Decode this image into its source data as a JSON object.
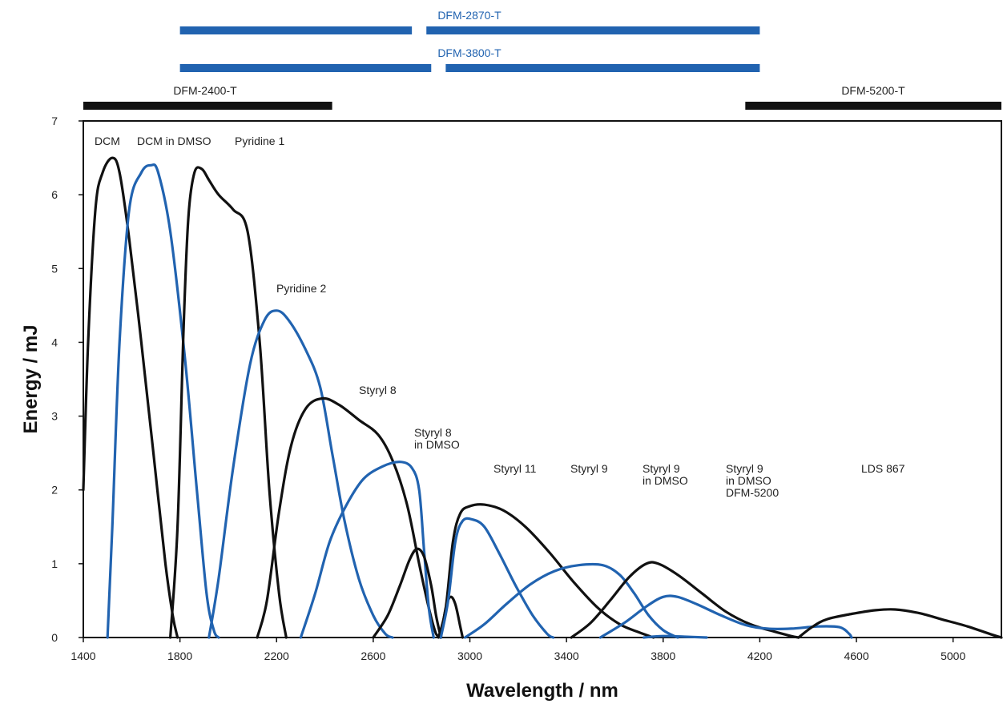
{
  "chart_data": {
    "type": "line",
    "xlabel": "Wavelength / nm",
    "ylabel": "Energy / mJ",
    "xlim": [
      1400,
      5200
    ],
    "ylim": [
      0,
      7
    ],
    "x_ticks": [
      1400,
      1800,
      2200,
      2600,
      3000,
      3400,
      3800,
      4200,
      4600,
      5000
    ],
    "y_ticks": [
      0,
      1,
      2,
      3,
      4,
      5,
      6,
      7
    ],
    "grid": false,
    "colors": {
      "black": "#111111",
      "blue": "#2163b0"
    },
    "ranges": [
      {
        "label": "DFM-2870-T",
        "color": "blue",
        "segments": [
          [
            1800,
            2760
          ],
          [
            2820,
            4200
          ]
        ]
      },
      {
        "label": "DFM-3800-T",
        "color": "blue",
        "segments": [
          [
            1800,
            2840
          ],
          [
            2900,
            4200
          ]
        ]
      },
      {
        "label": "DFM-2400-T",
        "color": "black",
        "segments": [
          [
            1400,
            2430
          ]
        ]
      },
      {
        "label": "DFM-5200-T",
        "color": "black",
        "segments": [
          [
            4140,
            5200
          ]
        ]
      }
    ],
    "curve_labels": [
      {
        "lines": [
          "DCM"
        ]
      },
      {
        "lines": [
          "DCM in DMSO"
        ]
      },
      {
        "lines": [
          "Pyridine 1"
        ]
      },
      {
        "lines": [
          "Pyridine 2"
        ]
      },
      {
        "lines": [
          "Styryl 8"
        ]
      },
      {
        "lines": [
          "Styryl 8",
          "in DMSO"
        ]
      },
      {
        "lines": [
          "Styryl 11"
        ]
      },
      {
        "lines": [
          "Styryl 9"
        ]
      },
      {
        "lines": [
          "Styryl 9",
          "in DMSO"
        ]
      },
      {
        "lines": [
          "Styryl 9",
          "in DMSO",
          "DFM-5200"
        ]
      },
      {
        "lines": [
          "LDS 867"
        ]
      }
    ],
    "series": [
      {
        "color": "black",
        "points": [
          [
            1400,
            2.0
          ],
          [
            1420,
            4.0
          ],
          [
            1450,
            5.8
          ],
          [
            1480,
            6.3
          ],
          [
            1520,
            6.5
          ],
          [
            1550,
            6.3
          ],
          [
            1590,
            5.4
          ],
          [
            1640,
            4.0
          ],
          [
            1690,
            2.5
          ],
          [
            1740,
            1.0
          ],
          [
            1770,
            0.3
          ],
          [
            1790,
            0
          ]
        ]
      },
      {
        "color": "blue",
        "points": [
          [
            1500,
            0
          ],
          [
            1520,
            1.5
          ],
          [
            1550,
            4.0
          ],
          [
            1590,
            5.8
          ],
          [
            1640,
            6.3
          ],
          [
            1680,
            6.4
          ],
          [
            1710,
            6.3
          ],
          [
            1760,
            5.5
          ],
          [
            1820,
            3.8
          ],
          [
            1870,
            2.0
          ],
          [
            1910,
            0.6
          ],
          [
            1940,
            0.1
          ],
          [
            1960,
            0
          ]
        ]
      },
      {
        "color": "black",
        "points": [
          [
            1760,
            0
          ],
          [
            1790,
            1.5
          ],
          [
            1815,
            4.2
          ],
          [
            1835,
            5.7
          ],
          [
            1860,
            6.3
          ],
          [
            1890,
            6.35
          ],
          [
            1920,
            6.2
          ],
          [
            1960,
            6.0
          ],
          [
            2020,
            5.8
          ],
          [
            2080,
            5.5
          ],
          [
            2130,
            4.0
          ],
          [
            2170,
            2.0
          ],
          [
            2210,
            0.6
          ],
          [
            2240,
            0
          ]
        ]
      },
      {
        "color": "blue",
        "points": [
          [
            1920,
            0
          ],
          [
            1960,
            0.8
          ],
          [
            2020,
            2.3
          ],
          [
            2090,
            3.7
          ],
          [
            2150,
            4.3
          ],
          [
            2200,
            4.43
          ],
          [
            2250,
            4.3
          ],
          [
            2320,
            3.9
          ],
          [
            2380,
            3.4
          ],
          [
            2430,
            2.5
          ],
          [
            2480,
            1.6
          ],
          [
            2540,
            0.8
          ],
          [
            2600,
            0.3
          ],
          [
            2650,
            0.05
          ],
          [
            2680,
            0
          ]
        ]
      },
      {
        "color": "black",
        "points": [
          [
            2120,
            0
          ],
          [
            2160,
            0.5
          ],
          [
            2210,
            1.7
          ],
          [
            2260,
            2.6
          ],
          [
            2320,
            3.1
          ],
          [
            2390,
            3.24
          ],
          [
            2460,
            3.15
          ],
          [
            2540,
            2.95
          ],
          [
            2620,
            2.75
          ],
          [
            2680,
            2.4
          ],
          [
            2740,
            1.8
          ],
          [
            2790,
            1.0
          ],
          [
            2830,
            0.4
          ],
          [
            2860,
            0.05
          ],
          [
            2880,
            0
          ]
        ]
      },
      {
        "color": "blue",
        "points": [
          [
            2300,
            0
          ],
          [
            2360,
            0.6
          ],
          [
            2420,
            1.3
          ],
          [
            2490,
            1.8
          ],
          [
            2560,
            2.15
          ],
          [
            2640,
            2.32
          ],
          [
            2710,
            2.38
          ],
          [
            2760,
            2.3
          ],
          [
            2790,
            2.0
          ],
          [
            2810,
            1.2
          ],
          [
            2830,
            0.4
          ],
          [
            2850,
            0
          ]
        ]
      },
      {
        "color": "black",
        "points": [
          [
            2600,
            0
          ],
          [
            2660,
            0.3
          ],
          [
            2710,
            0.7
          ],
          [
            2750,
            1.05
          ],
          [
            2780,
            1.2
          ],
          [
            2810,
            1.1
          ],
          [
            2840,
            0.7
          ],
          [
            2860,
            0.3
          ],
          [
            2880,
            0
          ]
        ]
      },
      {
        "color": "black",
        "points": [
          [
            2880,
            0
          ],
          [
            2900,
            0.4
          ],
          [
            2920,
            0.55
          ],
          [
            2940,
            0.45
          ],
          [
            2960,
            0.15
          ],
          [
            2970,
            0
          ]
        ]
      },
      {
        "color": "black",
        "points": [
          [
            2870,
            0
          ],
          [
            2900,
            0.4
          ],
          [
            2930,
            1.3
          ],
          [
            2960,
            1.68
          ],
          [
            3000,
            1.78
          ],
          [
            3060,
            1.8
          ],
          [
            3140,
            1.72
          ],
          [
            3230,
            1.5
          ],
          [
            3330,
            1.15
          ],
          [
            3430,
            0.75
          ],
          [
            3530,
            0.4
          ],
          [
            3620,
            0.18
          ],
          [
            3700,
            0.07
          ],
          [
            3760,
            0
          ]
        ]
      },
      {
        "color": "blue",
        "points": [
          [
            2880,
            0
          ],
          [
            2910,
            0.5
          ],
          [
            2940,
            1.3
          ],
          [
            2970,
            1.58
          ],
          [
            3010,
            1.6
          ],
          [
            3060,
            1.5
          ],
          [
            3120,
            1.15
          ],
          [
            3190,
            0.7
          ],
          [
            3260,
            0.3
          ],
          [
            3320,
            0.05
          ],
          [
            3345,
            0
          ]
        ]
      },
      {
        "color": "blue",
        "points": [
          [
            2980,
            0
          ],
          [
            3060,
            0.18
          ],
          [
            3150,
            0.45
          ],
          [
            3250,
            0.72
          ],
          [
            3350,
            0.9
          ],
          [
            3450,
            0.98
          ],
          [
            3550,
            0.98
          ],
          [
            3620,
            0.85
          ],
          [
            3680,
            0.6
          ],
          [
            3740,
            0.3
          ],
          [
            3800,
            0.1
          ],
          [
            3860,
            0
          ]
        ]
      },
      {
        "color": "black",
        "points": [
          [
            3420,
            0
          ],
          [
            3500,
            0.2
          ],
          [
            3580,
            0.5
          ],
          [
            3660,
            0.82
          ],
          [
            3730,
            1.0
          ],
          [
            3780,
            1.0
          ],
          [
            3860,
            0.85
          ],
          [
            3960,
            0.6
          ],
          [
            4060,
            0.35
          ],
          [
            4160,
            0.18
          ],
          [
            4260,
            0.08
          ],
          [
            4330,
            0.02
          ],
          [
            4360,
            0
          ]
        ]
      },
      {
        "color": "blue",
        "points": [
          [
            3540,
            0
          ],
          [
            3640,
            0.2
          ],
          [
            3730,
            0.42
          ],
          [
            3800,
            0.55
          ],
          [
            3860,
            0.55
          ],
          [
            3940,
            0.45
          ],
          [
            4040,
            0.3
          ],
          [
            4140,
            0.17
          ],
          [
            4230,
            0.12
          ],
          [
            4330,
            0.12
          ],
          [
            4440,
            0.15
          ],
          [
            4530,
            0.14
          ],
          [
            4570,
            0.05
          ],
          [
            4580,
            0
          ]
        ]
      },
      {
        "color": "black",
        "points": [
          [
            4360,
            0
          ],
          [
            4420,
            0.15
          ],
          [
            4480,
            0.25
          ],
          [
            4580,
            0.32
          ],
          [
            4680,
            0.37
          ],
          [
            4760,
            0.38
          ],
          [
            4860,
            0.33
          ],
          [
            4960,
            0.24
          ],
          [
            5060,
            0.15
          ],
          [
            5160,
            0.04
          ],
          [
            5200,
            0
          ]
        ]
      },
      {
        "color": "blue",
        "points": [
          [
            3720,
            0
          ],
          [
            3800,
            0.02
          ],
          [
            3900,
            0.01
          ],
          [
            3980,
            0
          ]
        ]
      }
    ]
  }
}
